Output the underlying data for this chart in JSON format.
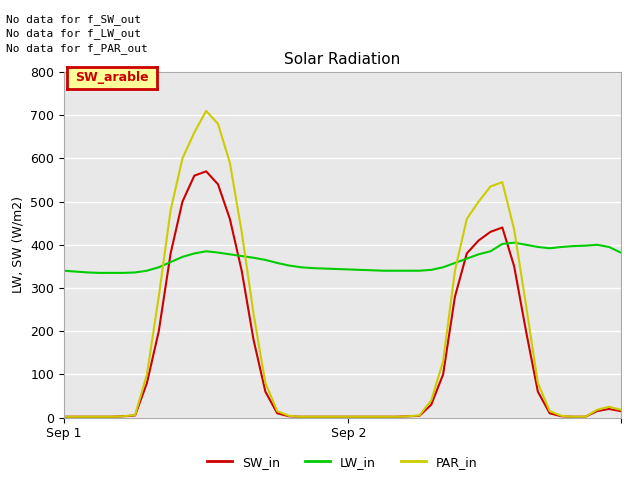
{
  "title": "Solar Radiation",
  "ylabel": "LW, SW (W/m2)",
  "annotations": [
    "No data for f_SW_out",
    "No data for f_LW_out",
    "No data for f_PAR_out"
  ],
  "legend_label": "SW_arable",
  "legend_bg": "#ffff99",
  "legend_border": "#cc0000",
  "ylim": [
    0,
    800
  ],
  "yticks": [
    0,
    100,
    200,
    300,
    400,
    500,
    600,
    700,
    800
  ],
  "bg_color": "#e8e8e8",
  "grid_color": "#ffffff",
  "line_colors": {
    "SW_in": "#cc0000",
    "LW_in": "#00cc00",
    "PAR_in": "#cccc00"
  },
  "x_ticks": [
    0,
    24,
    47
  ],
  "x_tick_labels": [
    "Sep 1",
    "Sep 2",
    ""
  ],
  "SW_in": [
    2,
    2,
    2,
    2,
    2,
    3,
    5,
    80,
    200,
    380,
    500,
    560,
    570,
    540,
    460,
    340,
    180,
    60,
    10,
    3,
    2,
    2,
    2,
    2,
    2,
    2,
    2,
    2,
    2,
    3,
    4,
    30,
    100,
    280,
    380,
    410,
    430,
    440,
    350,
    200,
    60,
    10,
    3,
    2,
    2,
    15,
    20,
    15
  ],
  "LW_in": [
    340,
    338,
    336,
    335,
    335,
    335,
    336,
    340,
    348,
    360,
    372,
    380,
    385,
    382,
    378,
    374,
    370,
    365,
    358,
    352,
    348,
    346,
    345,
    344,
    343,
    342,
    341,
    340,
    340,
    340,
    340,
    342,
    348,
    358,
    368,
    378,
    385,
    402,
    405,
    400,
    395,
    392,
    395,
    397,
    398,
    400,
    395,
    382
  ],
  "PAR_in": [
    2,
    2,
    2,
    2,
    2,
    3,
    6,
    100,
    280,
    480,
    600,
    660,
    710,
    680,
    590,
    430,
    240,
    80,
    15,
    4,
    2,
    2,
    2,
    2,
    2,
    2,
    2,
    2,
    2,
    3,
    5,
    40,
    130,
    340,
    460,
    500,
    535,
    545,
    435,
    260,
    80,
    15,
    4,
    2,
    2,
    18,
    25,
    18
  ],
  "title_fontsize": 11,
  "annot_fontsize": 8,
  "tick_fontsize": 9,
  "ylabel_fontsize": 9,
  "legend_fontsize": 9
}
